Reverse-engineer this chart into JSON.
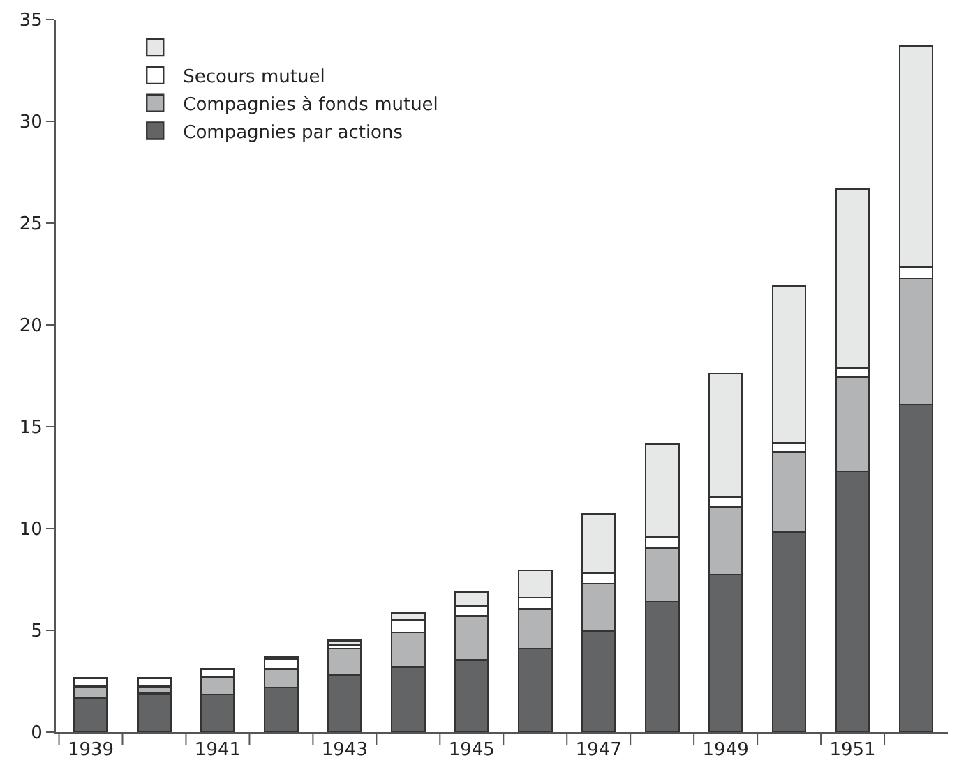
{
  "chart_data": {
    "type": "bar",
    "stacked": true,
    "categories": [
      "1939",
      null,
      "1941",
      null,
      "1943",
      null,
      "1945",
      null,
      "1947",
      null,
      "1949",
      null,
      "1951",
      null
    ],
    "series": [
      {
        "name": "Compagnies par actions",
        "color": "#636466",
        "values": [
          1.7,
          1.9,
          1.85,
          2.2,
          2.8,
          3.2,
          3.55,
          4.1,
          4.95,
          6.4,
          7.75,
          9.85,
          12.8,
          16.1
        ]
      },
      {
        "name": "Compagnies à fonds mutuel",
        "color": "#b3b4b6",
        "values": [
          0.55,
          0.35,
          0.85,
          0.9,
          1.3,
          1.7,
          2.15,
          1.95,
          2.35,
          2.65,
          3.3,
          3.9,
          4.65,
          6.2
        ]
      },
      {
        "name": "Secours mutuel",
        "color": "#ffffff",
        "values": [
          0.4,
          0.4,
          0.4,
          0.5,
          0.2,
          0.6,
          0.5,
          0.55,
          0.5,
          0.55,
          0.5,
          0.45,
          0.45,
          0.55
        ]
      },
      {
        "color": "#e6e7e7",
        "values": [
          null,
          null,
          null,
          0.1,
          0.2,
          0.35,
          0.7,
          1.35,
          2.9,
          4.55,
          6.05,
          7.7,
          8.8,
          10.85
        ]
      }
    ],
    "ylim": [
      0,
      35
    ],
    "yticks": [
      0,
      5,
      10,
      15,
      20,
      25,
      30,
      35
    ],
    "legend": "top left"
  }
}
